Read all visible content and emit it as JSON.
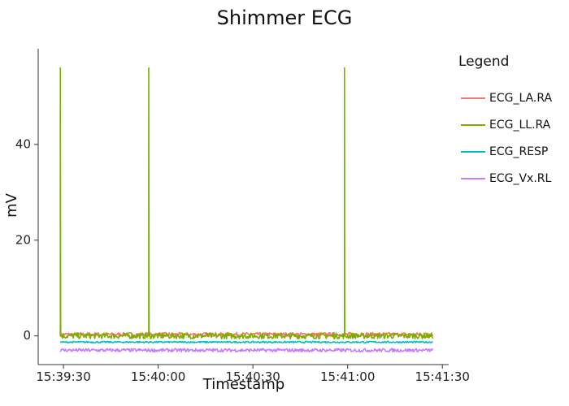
{
  "chart_data": {
    "type": "line",
    "title": "Shimmer ECG",
    "xlabel": "Timestamp",
    "ylabel": "mV",
    "x_ticks": [
      "15:39:30",
      "15:40:00",
      "15:40:30",
      "15:41:00",
      "15:41:30"
    ],
    "y_ticks": [
      "0",
      "20",
      "40"
    ],
    "xlim": [
      "15:39:22",
      "15:41:32"
    ],
    "ylim": [
      -6,
      60
    ],
    "grid": false,
    "legend": {
      "title": "Legend",
      "placement": "top-right"
    },
    "series": [
      {
        "name": "ECG_LA.RA",
        "color": "#f8766d",
        "baseline": 0.3,
        "noise": 0.4,
        "spikes": []
      },
      {
        "name": "ECG_LL.RA",
        "color": "#7cae00",
        "baseline": 0.0,
        "noise": 0.6,
        "spikes": [
          {
            "time": "15:39:29",
            "value": 56
          },
          {
            "time": "15:39:57",
            "value": 56
          },
          {
            "time": "15:40:59",
            "value": 56
          }
        ]
      },
      {
        "name": "ECG_RESP",
        "color": "#00bfc4",
        "baseline": -1.3,
        "noise": 0.15,
        "spikes": []
      },
      {
        "name": "ECG_Vx.RL",
        "color": "#c77cff",
        "baseline": -3.0,
        "noise": 0.35,
        "spikes": []
      }
    ]
  }
}
